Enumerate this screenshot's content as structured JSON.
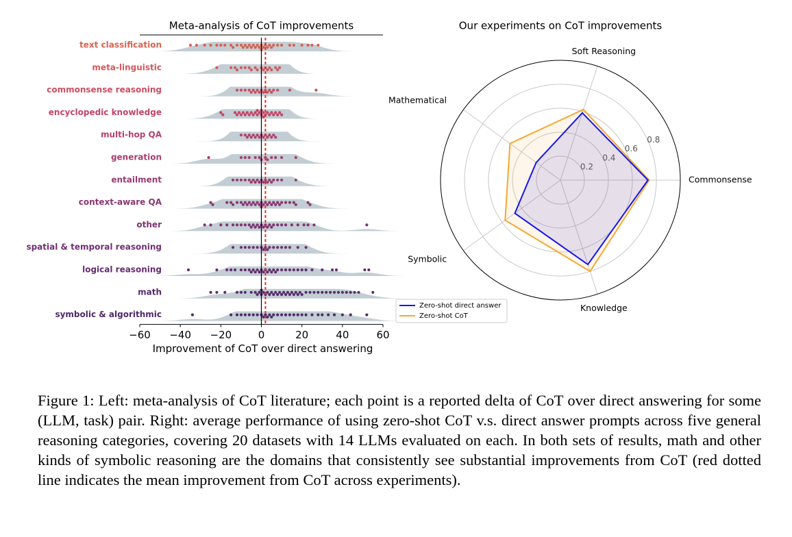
{
  "chart_data": [
    {
      "type": "swarm",
      "title": "Meta-analysis of CoT improvements",
      "xlabel": "Improvement of CoT over direct answering",
      "xlim": [
        -60,
        60
      ],
      "xticks": [
        {
          "value": -60,
          "label": "−60"
        },
        {
          "value": -40,
          "label": "−40"
        },
        {
          "value": -20,
          "label": "−20"
        },
        0,
        20,
        40,
        60
      ],
      "mean_line": 2,
      "mean_color": "#e0302a",
      "shade_color": "#b7c5cb",
      "series": [
        {
          "name": "text classification",
          "color": "#d9614e",
          "values": [
            -35,
            -32,
            -28,
            -25,
            -22,
            -20,
            -18,
            -15,
            -14,
            -12,
            -10,
            -9,
            -8,
            -7,
            -6,
            -5,
            -4,
            -3,
            -2,
            -1,
            0,
            0,
            1,
            2,
            3,
            4,
            5,
            6,
            8,
            10,
            14,
            16,
            20,
            23,
            25,
            28
          ]
        },
        {
          "name": "meta-linguistic",
          "color": "#d4585d",
          "values": [
            -22,
            -15,
            -13,
            -12,
            -10,
            -8,
            -6,
            -5,
            -3,
            -2,
            0,
            1,
            2,
            3,
            4,
            5,
            7,
            8,
            9
          ]
        },
        {
          "name": "commonsense reasoning",
          "color": "#ca4e62",
          "values": [
            -12,
            -10,
            -8,
            -6,
            -5,
            -4,
            -3,
            -2,
            -1,
            0,
            1,
            2,
            3,
            4,
            5,
            6,
            8,
            14,
            27
          ]
        },
        {
          "name": "encyclopedic knowledge",
          "color": "#c14567",
          "values": [
            -20,
            -19,
            -13,
            -12,
            -11,
            -10,
            -9,
            -8,
            -7,
            -6,
            -5,
            -4,
            -3,
            -2,
            -2,
            -1,
            0,
            0,
            1,
            1,
            2,
            3,
            4,
            5,
            6,
            7,
            8,
            9,
            10
          ]
        },
        {
          "name": "multi-hop QA",
          "color": "#b5406c",
          "values": [
            -10,
            -8,
            -7,
            -6,
            -5,
            -4,
            -3,
            -2,
            -1,
            0,
            1,
            2,
            3,
            4,
            5,
            6,
            7
          ]
        },
        {
          "name": "generation",
          "color": "#a83d70",
          "values": [
            -26,
            -10,
            -8,
            -6,
            -3,
            -1,
            0,
            2,
            3,
            5,
            7,
            10,
            17
          ]
        },
        {
          "name": "entailment",
          "color": "#9a3a72",
          "values": [
            -14,
            -12,
            -10,
            -8,
            -6,
            -5,
            -4,
            -3,
            -2,
            -1,
            0,
            1,
            2,
            3,
            4,
            5,
            6,
            8,
            10,
            17
          ]
        },
        {
          "name": "context-aware QA",
          "color": "#8b3573",
          "values": [
            -25,
            -24,
            -17,
            -15,
            -14,
            -12,
            -10,
            -9,
            -8,
            -7,
            -6,
            -5,
            -4,
            -3,
            -2,
            -1,
            0,
            0,
            1,
            2,
            3,
            4,
            5,
            6,
            7,
            8,
            9,
            10,
            12,
            14,
            16,
            17,
            23,
            24
          ]
        },
        {
          "name": "other",
          "color": "#7e3273",
          "values": [
            -28,
            -25,
            -20,
            -17,
            -14,
            -12,
            -10,
            -8,
            -6,
            -5,
            -4,
            -3,
            -2,
            -1,
            0,
            1,
            2,
            3,
            4,
            5,
            6,
            8,
            10,
            12,
            15,
            18,
            21,
            23,
            26,
            52
          ]
        },
        {
          "name": "spatial & temporal reasoning",
          "color": "#702f72",
          "values": [
            -14,
            -10,
            -8,
            -6,
            -4,
            -2,
            0,
            1,
            2,
            3,
            4,
            6,
            8,
            10,
            12,
            14,
            18,
            22
          ]
        },
        {
          "name": "logical reasoning",
          "color": "#642d70",
          "values": [
            -36,
            -22,
            -17,
            -15,
            -13,
            -10,
            -8,
            -6,
            -5,
            -4,
            -3,
            -2,
            -1,
            0,
            1,
            2,
            3,
            4,
            5,
            6,
            7,
            8,
            10,
            12,
            14,
            16,
            18,
            20,
            22,
            25,
            30,
            35,
            37,
            51,
            53
          ]
        },
        {
          "name": "math",
          "color": "#582b6d",
          "values": [
            -25,
            -22,
            -18,
            -12,
            -10,
            -8,
            -5,
            -3,
            -2,
            -1,
            0,
            0,
            1,
            2,
            3,
            4,
            5,
            6,
            7,
            8,
            9,
            10,
            11,
            12,
            13,
            14,
            15,
            16,
            17,
            18,
            19,
            20,
            22,
            24,
            26,
            28,
            30,
            32,
            34,
            36,
            38,
            40,
            42,
            44,
            46,
            48,
            55
          ]
        },
        {
          "name": "symbolic & algorithmic",
          "color": "#4e2a6a",
          "values": [
            -34,
            -15,
            -12,
            -10,
            -8,
            -6,
            -4,
            -2,
            0,
            1,
            2,
            3,
            4,
            5,
            6,
            8,
            10,
            12,
            14,
            16,
            18,
            20,
            22,
            25,
            28,
            30,
            33,
            36,
            40,
            44,
            52
          ]
        }
      ]
    },
    {
      "type": "radar",
      "title": "Our experiments on CoT improvements",
      "categories": [
        "Commonsense",
        "Soft Reasoning",
        "Mathematical",
        "Symbolic",
        "Knowledge"
      ],
      "rlim": [
        0,
        1
      ],
      "rticks": [
        0.2,
        0.4,
        0.6,
        0.8
      ],
      "legend": "lower left",
      "series": [
        {
          "name": "Zero-shot direct answer",
          "color": "#1515ee",
          "values": [
            0.73,
            0.59,
            0.25,
            0.47,
            0.74
          ]
        },
        {
          "name": "Zero-shot CoT",
          "color": "#f5a833",
          "values": [
            0.74,
            0.62,
            0.52,
            0.57,
            0.8
          ]
        }
      ]
    }
  ],
  "caption": "Figure 1: Left: meta-analysis of CoT literature; each point is a reported delta of CoT over direct answering for some (LLM, task) pair. Right: average performance of using zero-shot CoT v.s. direct answer prompts across five general reasoning categories, covering 20 datasets with 14 LLMs evaluated on each. In both sets of results, math and other kinds of symbolic reasoning are the domains that consistently see substantial improvements from CoT (red dotted line indicates the mean improvement from CoT across experiments)."
}
